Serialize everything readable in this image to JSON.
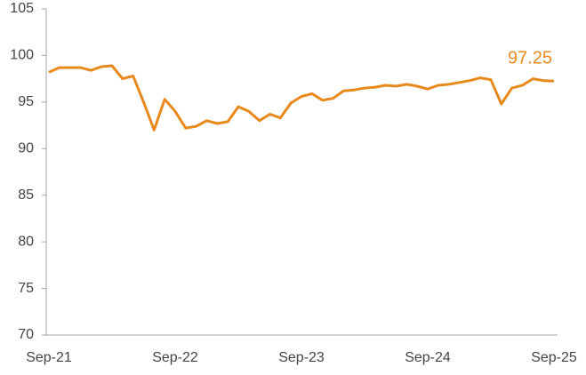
{
  "chart_data": {
    "type": "line",
    "categories": [
      "Sep-21",
      null,
      null,
      null,
      null,
      null,
      null,
      null,
      null,
      null,
      null,
      null,
      "Sep-22",
      null,
      null,
      null,
      null,
      null,
      null,
      null,
      null,
      null,
      null,
      null,
      "Sep-23",
      null,
      null,
      null,
      null,
      null,
      null,
      null,
      null,
      null,
      null,
      null,
      "Sep-24",
      null,
      null,
      null,
      null,
      null,
      null,
      null,
      null,
      null,
      null,
      null,
      "Sep-25"
    ],
    "values": [
      98.2,
      98.7,
      98.7,
      98.7,
      98.4,
      98.8,
      98.9,
      97.5,
      97.8,
      95.0,
      92.0,
      95.3,
      94.0,
      92.2,
      92.4,
      93.0,
      92.7,
      92.9,
      94.5,
      94.0,
      93.0,
      93.7,
      93.3,
      94.9,
      95.6,
      95.9,
      95.2,
      95.4,
      96.2,
      96.3,
      96.5,
      96.6,
      96.8,
      96.7,
      96.9,
      96.7,
      96.4,
      96.8,
      96.9,
      97.1,
      97.3,
      97.6,
      97.4,
      94.8,
      96.5,
      96.8,
      97.5,
      97.3,
      97.25
    ],
    "color": "#e8891c",
    "ylim": [
      70,
      105
    ],
    "yticks": [
      70,
      75,
      80,
      85,
      90,
      95,
      100,
      105
    ]
  }
}
